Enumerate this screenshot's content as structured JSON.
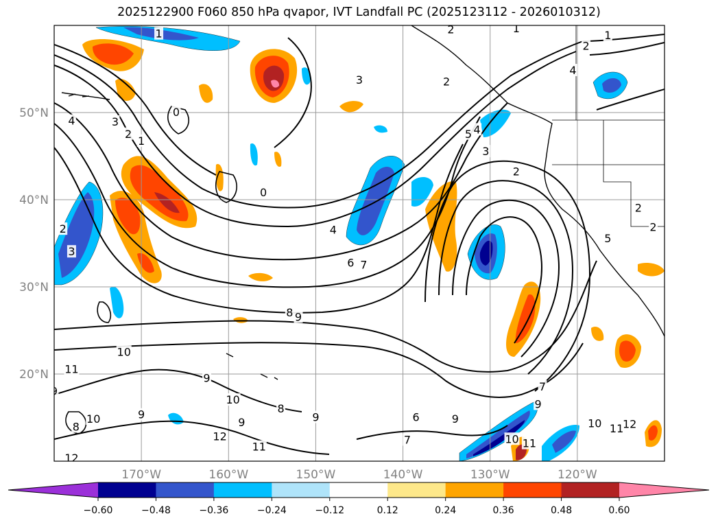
{
  "title": "2025122900 F060 850 hPa qvapor, IVT Landfall PC (2025123112 - 2026010312)",
  "map": {
    "lat_labels": [
      "50°N",
      "40°N",
      "30°N",
      "20°N"
    ],
    "lon_labels": [
      "170°W",
      "160°W",
      "150°W",
      "140°W",
      "130°W",
      "120°W"
    ]
  },
  "colorbar": {
    "tick_labels": [
      "−0.60",
      "−0.48",
      "−0.36",
      "−0.24",
      "−0.12",
      "0.12",
      "0.24",
      "0.36",
      "0.48",
      "0.60"
    ],
    "colors": [
      "#9b30d9",
      "#000090",
      "#3355cc",
      "#00bfff",
      "#afe4fa",
      "#ffffff",
      "#fde88a",
      "#ffa500",
      "#ff4500",
      "#b22222",
      "#ff85a8"
    ]
  },
  "contour_labels": [
    {
      "text": "1",
      "lon": -168.0,
      "lat": 59.0
    },
    {
      "text": "2",
      "lon": -134.5,
      "lat": 59.5
    },
    {
      "text": "1",
      "lon": -127.0,
      "lat": 59.6
    },
    {
      "text": "1",
      "lon": -116.5,
      "lat": 58.8
    },
    {
      "text": "2",
      "lon": -119.0,
      "lat": 57.6
    },
    {
      "text": "4",
      "lon": -120.5,
      "lat": 54.8
    },
    {
      "text": "3",
      "lon": -145.0,
      "lat": 53.7
    },
    {
      "text": "2",
      "lon": -135.0,
      "lat": 53.5
    },
    {
      "text": "0",
      "lon": -166.0,
      "lat": 50.0
    },
    {
      "text": "4",
      "lon": -178.0,
      "lat": 49.0
    },
    {
      "text": "3",
      "lon": -173.0,
      "lat": 48.9
    },
    {
      "text": "2",
      "lon": -171.5,
      "lat": 47.5
    },
    {
      "text": "1",
      "lon": -170.0,
      "lat": 46.7
    },
    {
      "text": "5",
      "lon": -132.5,
      "lat": 47.5
    },
    {
      "text": "4",
      "lon": -131.5,
      "lat": 48.0
    },
    {
      "text": "3",
      "lon": -130.5,
      "lat": 45.5
    },
    {
      "text": "2",
      "lon": -127.0,
      "lat": 43.2
    },
    {
      "text": "0",
      "lon": -156.0,
      "lat": 40.8
    },
    {
      "text": "4",
      "lon": -148.0,
      "lat": 36.5
    },
    {
      "text": "2",
      "lon": -179.0,
      "lat": 36.6
    },
    {
      "text": "3",
      "lon": -178.0,
      "lat": 34.0
    },
    {
      "text": "6",
      "lon": -146.0,
      "lat": 32.7
    },
    {
      "text": "7",
      "lon": -144.5,
      "lat": 32.5
    },
    {
      "text": "2",
      "lon": -113.0,
      "lat": 39.0
    },
    {
      "text": "2",
      "lon": -111.3,
      "lat": 36.8
    },
    {
      "text": "5",
      "lon": -116.5,
      "lat": 35.5
    },
    {
      "text": "8",
      "lon": -153.0,
      "lat": 27.0
    },
    {
      "text": "9",
      "lon": -152.0,
      "lat": 26.5
    },
    {
      "text": "10",
      "lon": -172.0,
      "lat": 22.5
    },
    {
      "text": "11",
      "lon": -178.0,
      "lat": 20.5
    },
    {
      "text": "9",
      "lon": -162.5,
      "lat": 19.5
    },
    {
      "text": "10",
      "lon": -159.5,
      "lat": 17.0
    },
    {
      "text": "9",
      "lon": -180.0,
      "lat": 18.0
    },
    {
      "text": "8",
      "lon": -154.0,
      "lat": 16.0
    },
    {
      "text": "9",
      "lon": -150.0,
      "lat": 15.0
    },
    {
      "text": "9",
      "lon": -158.5,
      "lat": 14.4
    },
    {
      "text": "9",
      "lon": -170.0,
      "lat": 15.3
    },
    {
      "text": "10",
      "lon": -175.5,
      "lat": 14.8
    },
    {
      "text": "8",
      "lon": -177.5,
      "lat": 13.9
    },
    {
      "text": "12",
      "lon": -161.0,
      "lat": 12.8
    },
    {
      "text": "11",
      "lon": -156.5,
      "lat": 11.6
    },
    {
      "text": "12",
      "lon": -178.0,
      "lat": 10.3
    },
    {
      "text": "6",
      "lon": -138.5,
      "lat": 15.0
    },
    {
      "text": "9",
      "lon": -134.0,
      "lat": 14.8
    },
    {
      "text": "7",
      "lon": -139.5,
      "lat": 12.4
    },
    {
      "text": "10",
      "lon": -127.5,
      "lat": 12.5
    },
    {
      "text": "11",
      "lon": -125.5,
      "lat": 12.0
    },
    {
      "text": "9",
      "lon": -124.5,
      "lat": 16.5
    },
    {
      "text": "7",
      "lon": -124.0,
      "lat": 18.5
    },
    {
      "text": "10",
      "lon": -118.0,
      "lat": 14.3
    },
    {
      "text": "11",
      "lon": -115.5,
      "lat": 13.7
    },
    {
      "text": "12",
      "lon": -114.0,
      "lat": 14.2
    }
  ]
}
